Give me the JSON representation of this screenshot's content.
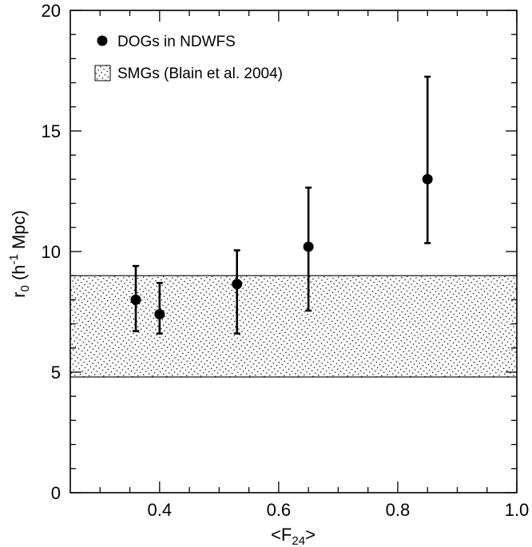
{
  "chart_data": {
    "type": "scatter",
    "xlabel": "<F",
    "xlabel_sub": "24",
    "xlabel_end": ">",
    "ylabel_prefix": "r",
    "ylabel_sub": "0",
    "ylabel_mid": " (h",
    "ylabel_sup": "-1",
    "ylabel_end": " Mpc)",
    "xlim": [
      0.25,
      1.0
    ],
    "ylim": [
      0,
      20
    ],
    "x_ticks": [
      0.4,
      0.6,
      0.8,
      1.0
    ],
    "x_tick_labels": [
      "0.4",
      "0.6",
      "0.8",
      "1.0"
    ],
    "y_ticks": [
      0,
      5,
      10,
      15,
      20
    ],
    "y_tick_labels": [
      "0",
      "5",
      "10",
      "15",
      "20"
    ],
    "grid": false,
    "legend_position": "top-left",
    "series": [
      {
        "name": "DOGs in NDWFS",
        "marker": "filled-circle",
        "color": "#000000",
        "points": [
          {
            "x": 0.36,
            "y": 8.0,
            "y_low": 6.7,
            "y_high": 9.4
          },
          {
            "x": 0.4,
            "y": 7.4,
            "y_low": 6.6,
            "y_high": 8.7
          },
          {
            "x": 0.53,
            "y": 8.65,
            "y_low": 6.6,
            "y_high": 10.05
          },
          {
            "x": 0.65,
            "y": 10.2,
            "y_low": 7.55,
            "y_high": 12.65
          },
          {
            "x": 0.85,
            "y": 13.0,
            "y_low": 10.35,
            "y_high": 17.25
          }
        ]
      }
    ],
    "bands": [
      {
        "name": "SMGs (Blain et al. 2004)",
        "pattern": "dotted-hatch",
        "y_min": 4.8,
        "y_max": 9.0
      }
    ]
  }
}
